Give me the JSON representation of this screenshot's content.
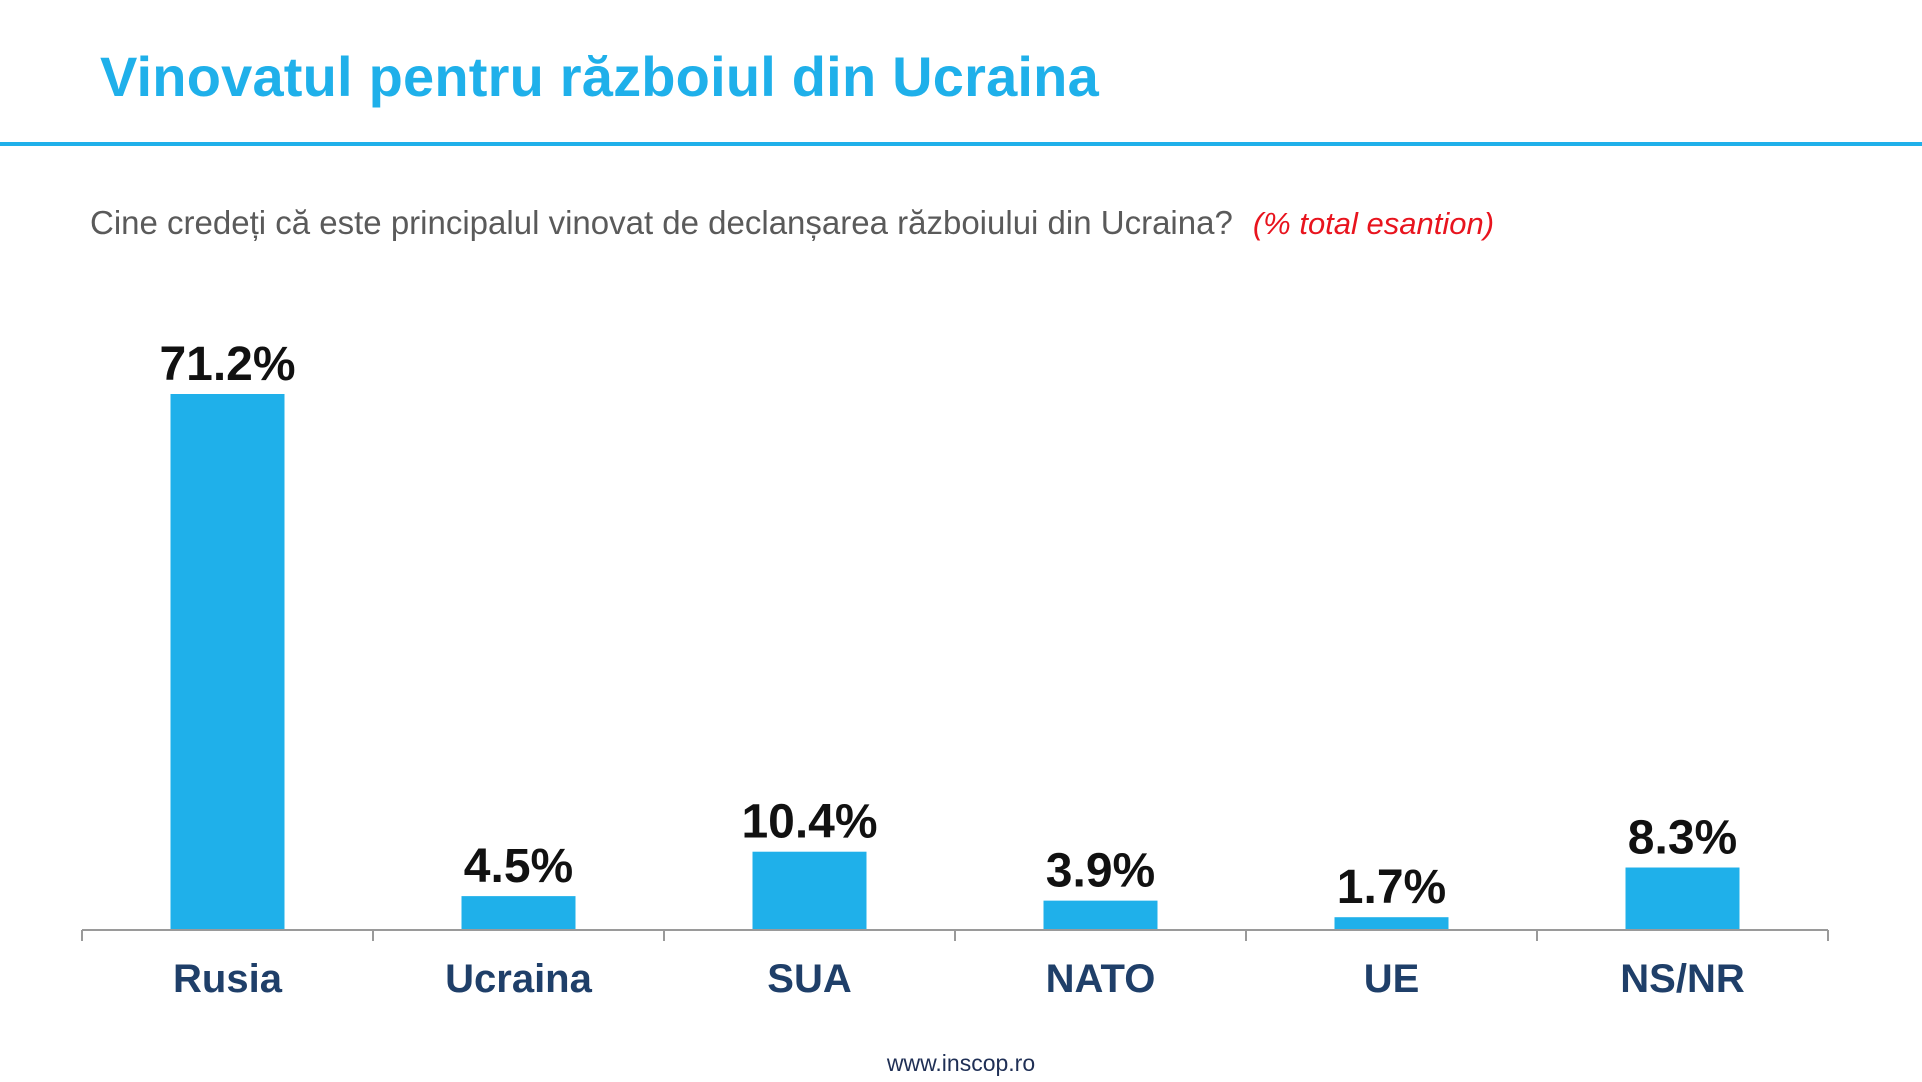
{
  "slide": {
    "title": "Vinovatul pentru războiul din Ucraina",
    "question": "Cine credeți că este principalul vinovat de declanșarea războiului din Ucraina?",
    "question_note": "(% total esantion)",
    "footer": "www.inscop.ro",
    "colors": {
      "accent": "#1fb0ea",
      "category_label": "#1f3f69",
      "note": "#e8141e"
    }
  },
  "chart_data": {
    "type": "bar",
    "categories": [
      "Rusia",
      "Ucraina",
      "SUA",
      "NATO",
      "UE",
      "NS/NR"
    ],
    "values": [
      71.2,
      4.5,
      10.4,
      3.9,
      1.7,
      8.3
    ],
    "value_labels": [
      "71.2%",
      "4.5%",
      "10.4%",
      "3.9%",
      "1.7%",
      "8.3%"
    ],
    "unit": "%",
    "ylim": [
      0,
      71.2
    ],
    "grid": false,
    "legend": "none"
  }
}
